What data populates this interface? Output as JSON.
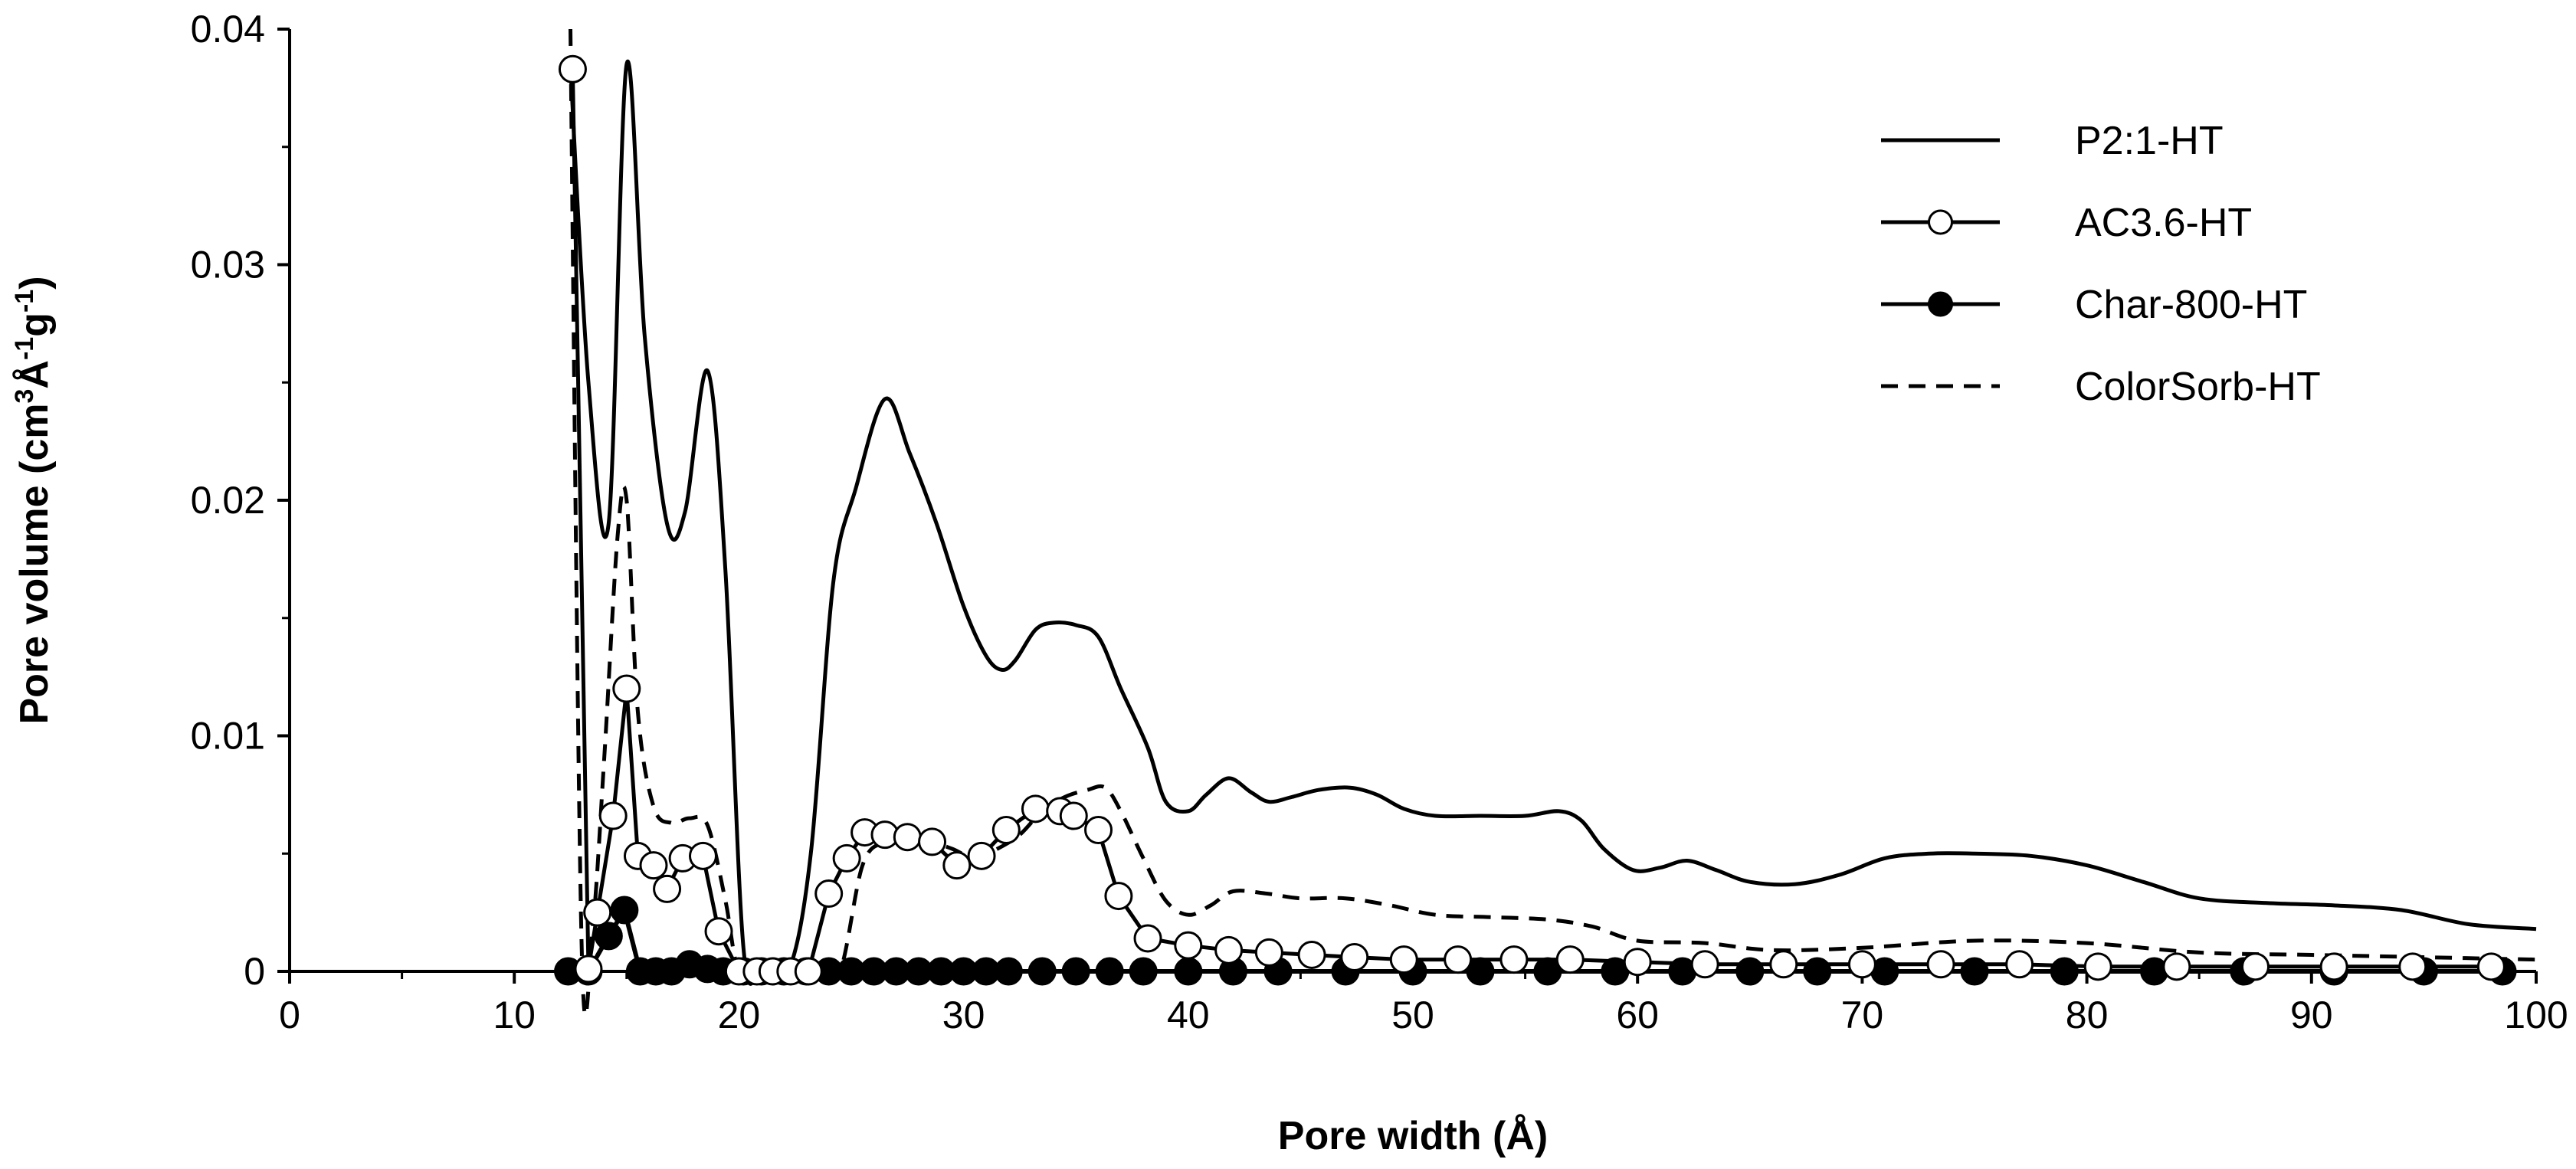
{
  "chart_data": {
    "type": "line",
    "xlabel": "Pore width (Å)",
    "ylabel": {
      "main": "Pore volume (cm",
      "sup1": "3",
      "mid1": "Å",
      "sup2": "-1",
      "mid2": "g",
      "sup3": "-1",
      "end": ")"
    },
    "xlim": [
      0,
      100
    ],
    "ylim": [
      0,
      0.04
    ],
    "xticks": [
      {
        "value": 0,
        "label": "0"
      },
      {
        "value": 10,
        "label": "10"
      },
      {
        "value": 20,
        "label": "20"
      },
      {
        "value": 30,
        "label": "30"
      },
      {
        "value": 40,
        "label": "40"
      },
      {
        "value": 50,
        "label": "50"
      },
      {
        "value": 60,
        "label": "60"
      },
      {
        "value": 70,
        "label": "70"
      },
      {
        "value": 80,
        "label": "80"
      },
      {
        "value": 90,
        "label": "90"
      },
      {
        "value": 100,
        "label": "100"
      }
    ],
    "yticks": [
      {
        "value": 0,
        "label": "0"
      },
      {
        "value": 0.01,
        "label": "0.01"
      },
      {
        "value": 0.02,
        "label": "0.02"
      },
      {
        "value": 0.03,
        "label": "0.03"
      },
      {
        "value": 0.04,
        "label": "0.04"
      }
    ],
    "grid": false,
    "legend_position": "top-right",
    "series": [
      {
        "name": "P2:1-HT",
        "style": "solid",
        "marker": "none",
        "x": [
          12.5,
          13.3,
          14.2,
          15.0,
          15.8,
          16.8,
          17.6,
          18.6,
          19.4,
          20.2,
          21.0,
          22.2,
          23.2,
          24.2,
          25.2,
          26.5,
          27.6,
          28.8,
          30.0,
          31.0,
          31.7,
          32.3,
          33.2,
          34.0,
          35.0,
          36.0,
          37.0,
          38.2,
          39.0,
          40.0,
          40.8,
          41.8,
          42.8,
          43.6,
          44.6,
          45.8,
          47.2,
          48.4,
          49.6,
          51.0,
          53.0,
          55.0,
          56.5,
          57.5,
          58.5,
          59.8,
          61.0,
          62.2,
          63.5,
          65.0,
          67.0,
          69.0,
          71.0,
          73.0,
          75.0,
          77.5,
          80.0,
          82.5,
          85.0,
          88.0,
          91.0,
          94.0,
          97.0,
          100.0
        ],
        "y": [
          0.0384,
          0.025,
          0.019,
          0.0385,
          0.027,
          0.019,
          0.0195,
          0.0255,
          0.017,
          0.001,
          0.0,
          0.0,
          0.005,
          0.0165,
          0.0205,
          0.0243,
          0.022,
          0.019,
          0.0155,
          0.0134,
          0.0128,
          0.0132,
          0.0145,
          0.0148,
          0.0147,
          0.0142,
          0.012,
          0.0095,
          0.0072,
          0.0068,
          0.0075,
          0.0082,
          0.0076,
          0.0072,
          0.0074,
          0.0077,
          0.0078,
          0.0075,
          0.0069,
          0.0066,
          0.0066,
          0.0066,
          0.0068,
          0.0064,
          0.0052,
          0.0043,
          0.0044,
          0.0047,
          0.0043,
          0.0038,
          0.0037,
          0.0041,
          0.0048,
          0.005,
          0.005,
          0.0049,
          0.0045,
          0.0038,
          0.0031,
          0.0029,
          0.0028,
          0.0026,
          0.002,
          0.0018
        ]
      },
      {
        "name": "AC3.6-HT",
        "style": "solid",
        "marker": "open-circle",
        "x": [
          12.6,
          13.3,
          13.7,
          14.4,
          15.0,
          15.5,
          16.2,
          16.8,
          17.5,
          18.4,
          19.1,
          20.0,
          20.8,
          21.5,
          22.3,
          23.1,
          24.0,
          24.8,
          25.6,
          26.5,
          27.5,
          28.6,
          29.7,
          30.8,
          31.9,
          33.2,
          34.3,
          34.9,
          36.0,
          36.9,
          38.2,
          40.0,
          41.8,
          43.6,
          45.5,
          47.4,
          49.6,
          52.0,
          54.5,
          57.0,
          60.0,
          63.0,
          66.5,
          70.0,
          73.5,
          77.0,
          80.5,
          84.0,
          87.5,
          91.0,
          94.5,
          98.0
        ],
        "y": [
          0.0383,
          0.0001,
          0.0025,
          0.0066,
          0.012,
          0.0049,
          0.0045,
          0.0035,
          0.0048,
          0.0049,
          0.0017,
          0.0,
          0.0,
          0.0,
          0.0,
          0.0,
          0.0033,
          0.0048,
          0.0059,
          0.0058,
          0.0057,
          0.0055,
          0.0045,
          0.0049,
          0.006,
          0.0069,
          0.0068,
          0.0066,
          0.006,
          0.0032,
          0.0014,
          0.0011,
          0.0009,
          0.0008,
          0.0007,
          0.0006,
          0.0005,
          0.0005,
          0.0005,
          0.0005,
          0.0004,
          0.0003,
          0.0003,
          0.0003,
          0.0003,
          0.0003,
          0.0002,
          0.0002,
          0.0002,
          0.0002,
          0.0002,
          0.0002
        ]
      },
      {
        "name": "Char-800-HT",
        "style": "solid",
        "marker": "filled-circle",
        "x": [
          12.4,
          13.3,
          14.2,
          14.9,
          15.6,
          16.3,
          17.0,
          17.8,
          18.6,
          19.3,
          20.2,
          21.0,
          22.0,
          23.0,
          24.0,
          25.0,
          26.0,
          27.0,
          28.0,
          29.0,
          30.0,
          31.0,
          32.0,
          33.5,
          35.0,
          36.5,
          38.0,
          40.0,
          42.0,
          44.0,
          47.0,
          50.0,
          53.0,
          56.0,
          59.0,
          62.0,
          65.0,
          68.0,
          71.0,
          75.0,
          79.0,
          83.0,
          87.0,
          91.0,
          95.0,
          98.5
        ],
        "y": [
          0.0,
          0.0,
          0.0015,
          0.0026,
          0.0,
          0.0,
          0.0,
          0.0003,
          0.0001,
          0.0,
          0.0,
          0.0,
          0.0,
          0.0,
          0.0,
          0.0,
          0.0,
          0.0,
          0.0,
          0.0,
          0.0,
          0.0,
          0.0,
          0.0,
          0.0,
          0.0,
          0.0,
          0.0,
          0.0,
          0.0,
          0.0,
          0.0,
          0.0,
          0.0,
          0.0,
          0.0,
          0.0,
          0.0,
          0.0,
          0.0,
          0.0,
          0.0,
          0.0,
          0.0,
          0.0,
          0.0
        ]
      },
      {
        "name": "ColorSorb-HT",
        "style": "dashed",
        "marker": "none",
        "x": [
          12.5,
          13.0,
          13.5,
          14.0,
          14.6,
          15.0,
          15.5,
          16.2,
          17.0,
          17.8,
          18.6,
          19.4,
          20.0,
          21.0,
          22.0,
          23.5,
          24.5,
          25.5,
          26.5,
          27.5,
          28.5,
          29.5,
          30.5,
          31.5,
          32.5,
          33.5,
          34.5,
          35.5,
          36.3,
          37.0,
          38.0,
          39.0,
          40.0,
          41.0,
          42.0,
          43.5,
          45.0,
          47.0,
          49.0,
          51.0,
          53.5,
          56.0,
          58.0,
          60.0,
          63.0,
          66.0,
          70.0,
          75.0,
          80.0,
          85.0,
          90.0,
          95.0,
          100.0
        ],
        "y": [
          0.04,
          0.001,
          0.002,
          0.009,
          0.0185,
          0.02,
          0.011,
          0.007,
          0.0063,
          0.0065,
          0.0062,
          0.003,
          0.0,
          0.0,
          0.0,
          0.0,
          0.0,
          0.0045,
          0.0055,
          0.0056,
          0.0055,
          0.0052,
          0.0048,
          0.0052,
          0.0058,
          0.0068,
          0.0074,
          0.0077,
          0.0078,
          0.0068,
          0.0048,
          0.003,
          0.0024,
          0.0028,
          0.0034,
          0.0033,
          0.0031,
          0.0031,
          0.0028,
          0.0024,
          0.0023,
          0.0022,
          0.0019,
          0.0013,
          0.0012,
          0.0009,
          0.001,
          0.0013,
          0.0012,
          0.0008,
          0.0007,
          0.0006,
          0.0005
        ]
      }
    ]
  }
}
